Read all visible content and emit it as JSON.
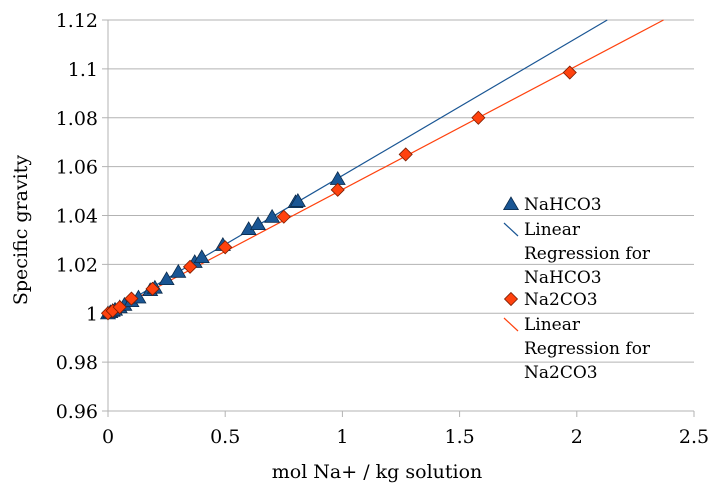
{
  "chart_data": {
    "type": "scatter",
    "title": "",
    "xlabel": "mol Na+ / kg solution",
    "ylabel": "Specific gravity",
    "xlim": [
      0,
      2.5
    ],
    "ylim": [
      0.96,
      1.12
    ],
    "x_ticks": [
      "0",
      "0.5",
      "1",
      "1.5",
      "2",
      "2.5"
    ],
    "y_ticks": [
      "0.96",
      "0.98",
      "1",
      "1.02",
      "1.04",
      "1.06",
      "1.08",
      "1.1",
      "1.12"
    ],
    "grid": "horizontal",
    "legend_position": "right",
    "series": [
      {
        "name": "NaHCO3",
        "marker": "triangle",
        "color": "#1a5694",
        "x": [
          0.0,
          0.01,
          0.02,
          0.03,
          0.05,
          0.07,
          0.1,
          0.13,
          0.18,
          0.2,
          0.25,
          0.3,
          0.37,
          0.4,
          0.49,
          0.6,
          0.64,
          0.7,
          0.8,
          0.81,
          0.98
        ],
        "y": [
          1.0,
          1.0005,
          1.001,
          1.0015,
          1.0025,
          1.0035,
          1.005,
          1.0065,
          1.0095,
          1.0105,
          1.014,
          1.017,
          1.021,
          1.023,
          1.028,
          1.0345,
          1.0365,
          1.0395,
          1.0455,
          1.046,
          1.055
        ]
      },
      {
        "name": "Linear Regression for NaHCO3",
        "line": true,
        "color": "#1a5694",
        "x": [
          0,
          2.13
        ],
        "y": [
          1.0,
          1.12
        ]
      },
      {
        "name": "Na2CO3",
        "marker": "diamond",
        "color": "#ff420e",
        "x": [
          0.0,
          0.02,
          0.05,
          0.1,
          0.19,
          0.35,
          0.5,
          0.75,
          0.98,
          1.27,
          1.58,
          1.97
        ],
        "y": [
          1.0,
          1.001,
          1.0025,
          1.006,
          1.01,
          1.019,
          1.027,
          1.0395,
          1.0505,
          1.065,
          1.08,
          1.0985
        ]
      },
      {
        "name": "Linear Regression for Na2CO3",
        "line": true,
        "color": "#ff420e",
        "x": [
          0,
          2.37
        ],
        "y": [
          1.0,
          1.12
        ]
      }
    ],
    "legend": [
      {
        "label_lines": [
          "NaHCO3"
        ]
      },
      {
        "label_lines": [
          "Linear",
          "Regression for",
          "NaHCO3"
        ]
      },
      {
        "label_lines": [
          "Na2CO3"
        ]
      },
      {
        "label_lines": [
          "Linear",
          "Regression for",
          "Na2CO3"
        ]
      }
    ]
  }
}
